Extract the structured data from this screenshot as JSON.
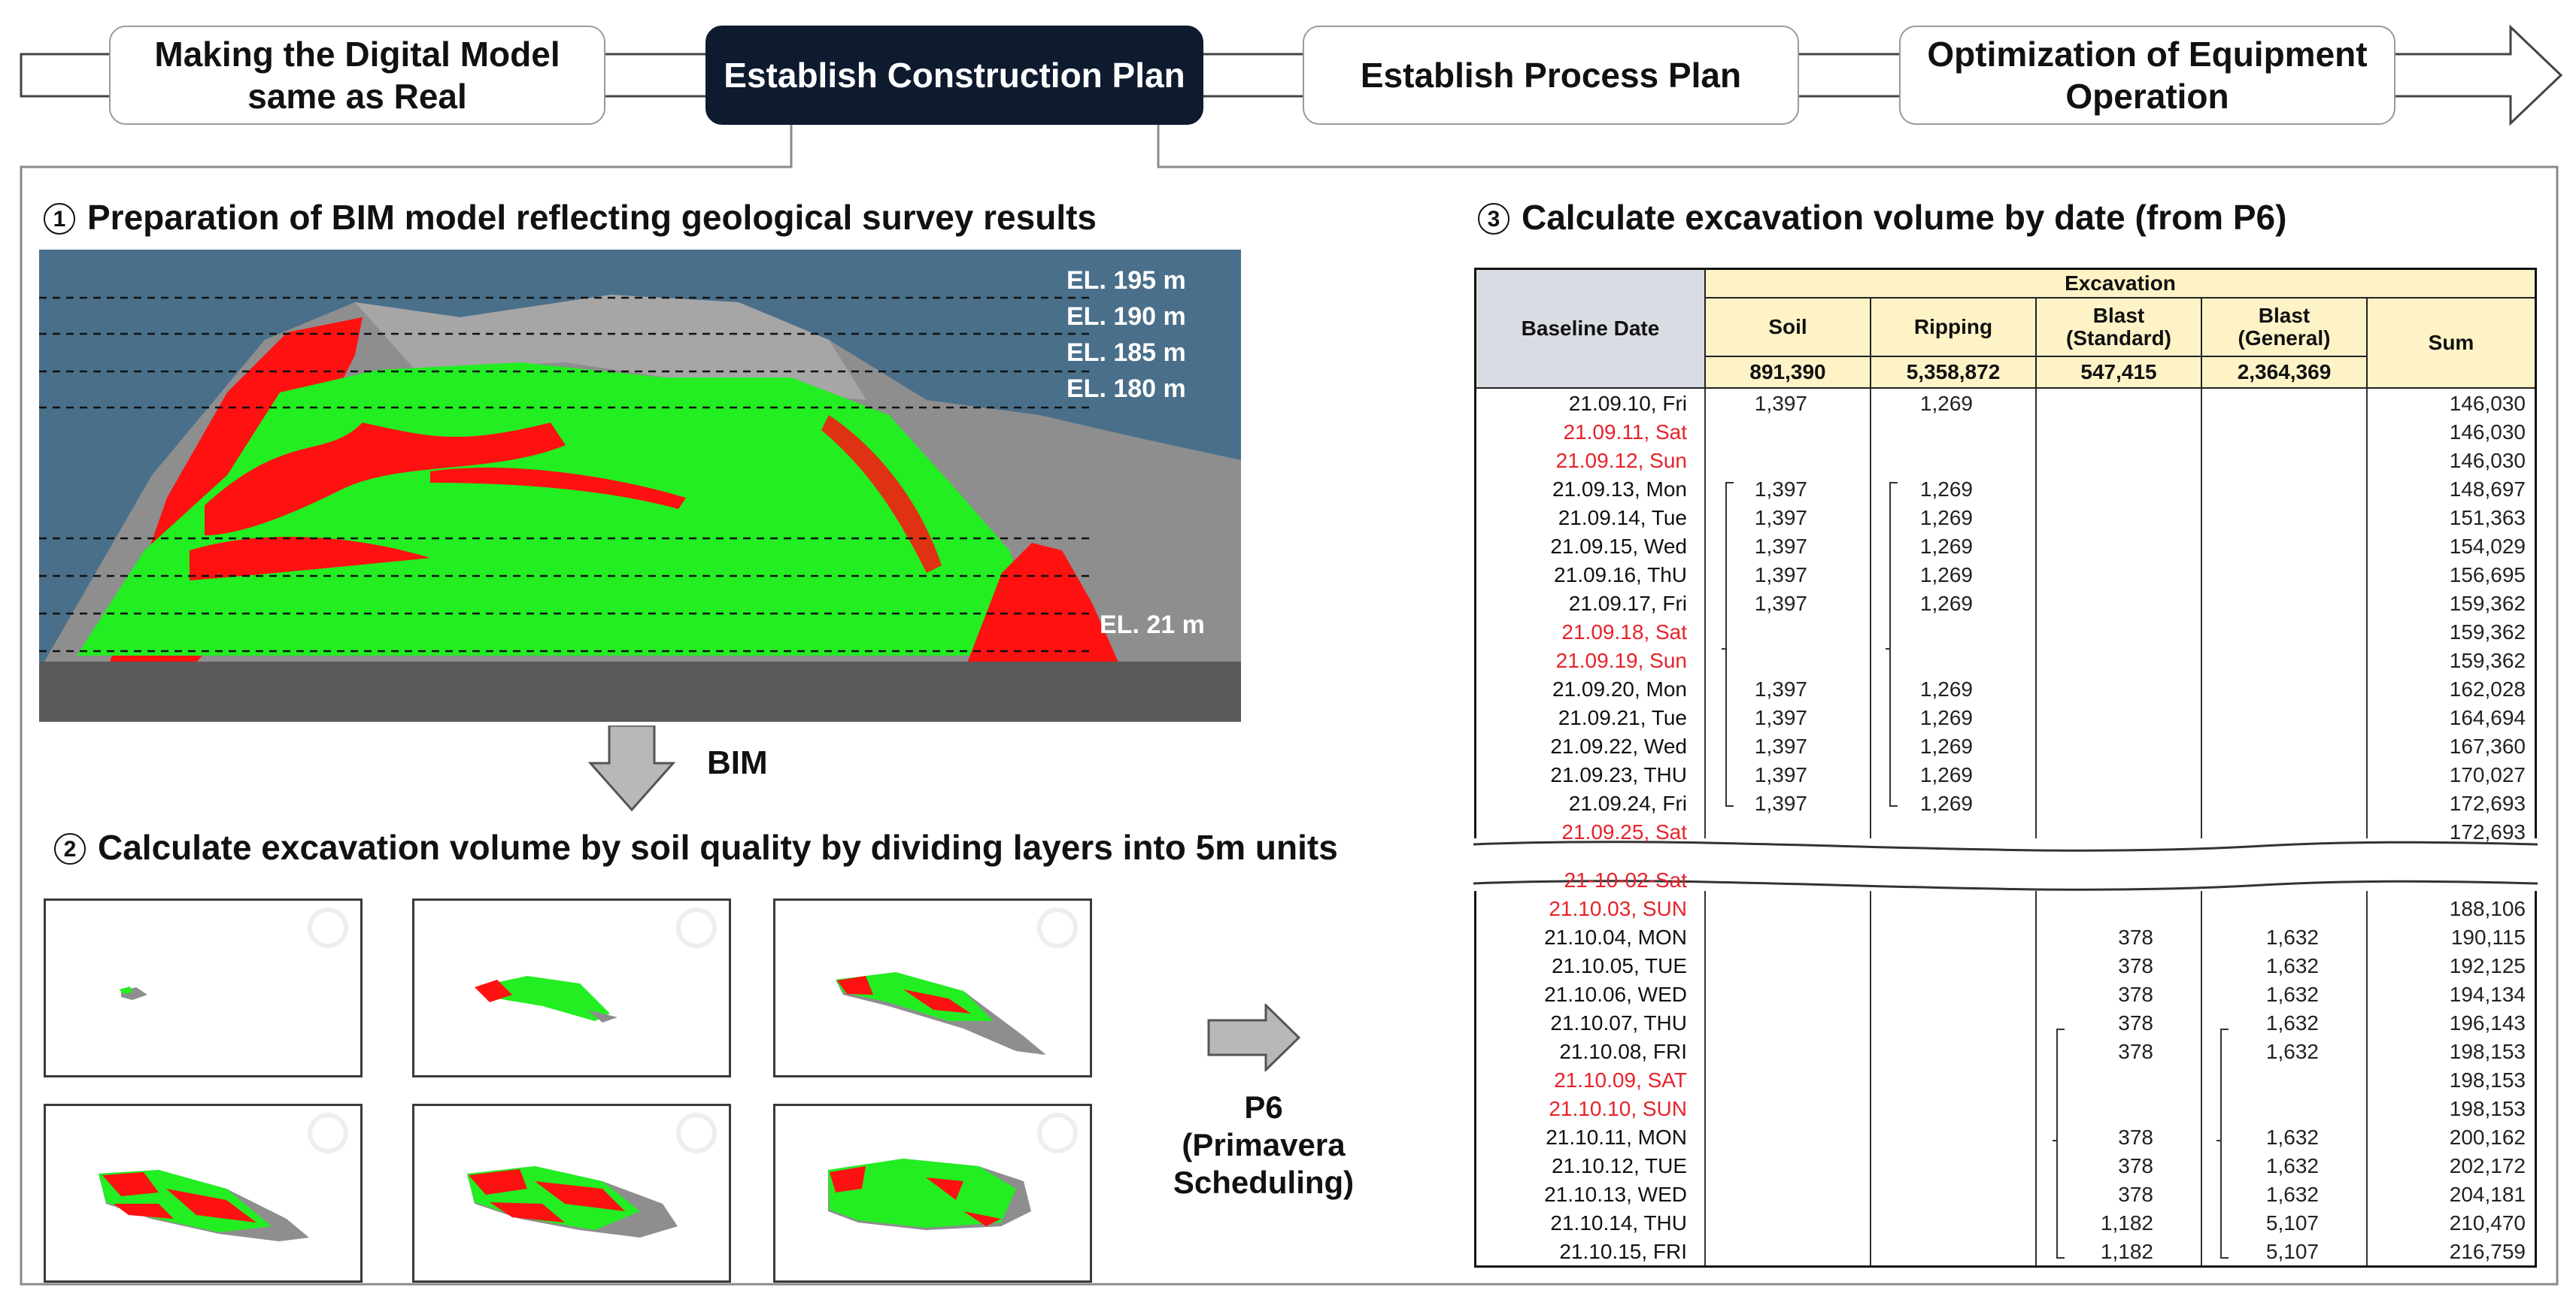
{
  "process_steps": [
    {
      "label": "Making the Digital Model\nsame as Real",
      "active": false
    },
    {
      "label": "Establish Construction Plan",
      "active": true
    },
    {
      "label": "Establish Process Plan",
      "active": false
    },
    {
      "label": "Optimization of Equipment\nOperation",
      "active": false
    }
  ],
  "section1": {
    "num": "1",
    "title": "Preparation of BIM model reflecting geological survey results"
  },
  "section2": {
    "num": "2",
    "title": "Calculate excavation volume by soil quality by dividing layers into 5m units"
  },
  "section3": {
    "num": "3",
    "title": "Calculate excavation volume by date  (from P6)"
  },
  "elevations": [
    "EL. 195 m",
    "EL. 190 m",
    "EL. 185 m",
    "EL. 180 m",
    "EL. 21 m"
  ],
  "arrows": {
    "bim": "BIM",
    "p6": "P6\n(Primavera\nScheduling)"
  },
  "colors": {
    "soil_green": "#22ee22",
    "rock_red": "#ff1111",
    "rock_gray": "#8e8e8e",
    "sky": "#4a6f8a",
    "active_step": "#0e1a2e",
    "header_fill": "#fdf3c6",
    "weekend_text": "#e8222b"
  },
  "table": {
    "header": {
      "baseline_date": "Baseline Date",
      "group": "Excavation",
      "columns": [
        "Soil",
        "Ripping",
        "Blast\n(Standard)",
        "Blast\n(General)",
        "Sum"
      ],
      "totals": [
        "891,390",
        "5,358,872",
        "547,415",
        "2,364,369"
      ]
    },
    "rows_part1": [
      {
        "date": "21.09.10, Fri",
        "weekend": false,
        "soil": "1,397",
        "ripping": "1,269",
        "blast_std": "",
        "blast_gen": "",
        "sum": "146,030"
      },
      {
        "date": "21.09.11, Sat",
        "weekend": true,
        "soil": "",
        "ripping": "",
        "blast_std": "",
        "blast_gen": "",
        "sum": "146,030"
      },
      {
        "date": "21.09.12, Sun",
        "weekend": true,
        "soil": "",
        "ripping": "",
        "blast_std": "",
        "blast_gen": "",
        "sum": "146,030"
      },
      {
        "date": "21.09.13, Mon",
        "weekend": false,
        "soil": "1,397",
        "ripping": "1,269",
        "blast_std": "",
        "blast_gen": "",
        "sum": "148,697"
      },
      {
        "date": "21.09.14, Tue",
        "weekend": false,
        "soil": "1,397",
        "ripping": "1,269",
        "blast_std": "",
        "blast_gen": "",
        "sum": "151,363"
      },
      {
        "date": "21.09.15, Wed",
        "weekend": false,
        "soil": "1,397",
        "ripping": "1,269",
        "blast_std": "",
        "blast_gen": "",
        "sum": "154,029"
      },
      {
        "date": "21.09.16, ThU",
        "weekend": false,
        "soil": "1,397",
        "ripping": "1,269",
        "blast_std": "",
        "blast_gen": "",
        "sum": "156,695"
      },
      {
        "date": "21.09.17, Fri",
        "weekend": false,
        "soil": "1,397",
        "ripping": "1,269",
        "blast_std": "",
        "blast_gen": "",
        "sum": "159,362"
      },
      {
        "date": "21.09.18, Sat",
        "weekend": true,
        "soil": "",
        "ripping": "",
        "blast_std": "",
        "blast_gen": "",
        "sum": "159,362"
      },
      {
        "date": "21.09.19, Sun",
        "weekend": true,
        "soil": "",
        "ripping": "",
        "blast_std": "",
        "blast_gen": "",
        "sum": "159,362"
      },
      {
        "date": "21.09.20, Mon",
        "weekend": false,
        "soil": "1,397",
        "ripping": "1,269",
        "blast_std": "",
        "blast_gen": "",
        "sum": "162,028"
      },
      {
        "date": "21.09.21, Tue",
        "weekend": false,
        "soil": "1,397",
        "ripping": "1,269",
        "blast_std": "",
        "blast_gen": "",
        "sum": "164,694"
      },
      {
        "date": "21.09.22, Wed",
        "weekend": false,
        "soil": "1,397",
        "ripping": "1,269",
        "blast_std": "",
        "blast_gen": "",
        "sum": "167,360"
      },
      {
        "date": "21.09.23, THU",
        "weekend": false,
        "soil": "1,397",
        "ripping": "1,269",
        "blast_std": "",
        "blast_gen": "",
        "sum": "170,027"
      },
      {
        "date": "21.09.24, Fri",
        "weekend": false,
        "soil": "1,397",
        "ripping": "1,269",
        "blast_std": "",
        "blast_gen": "",
        "sum": "172,693"
      },
      {
        "date": "21.09.25, Sat",
        "weekend": true,
        "soil": "",
        "ripping": "",
        "blast_std": "",
        "blast_gen": "",
        "sum": "172,693"
      }
    ],
    "rows_part2": [
      {
        "date": "21-10-02-Sat",
        "weekend": true,
        "soil": "",
        "ripping": "",
        "blast_std": "",
        "blast_gen": "",
        "sum": ""
      },
      {
        "date": "21.10.03, SUN",
        "weekend": true,
        "soil": "",
        "ripping": "",
        "blast_std": "",
        "blast_gen": "",
        "sum": "188,106"
      },
      {
        "date": "21.10.04, MON",
        "weekend": false,
        "soil": "",
        "ripping": "",
        "blast_std": "378",
        "blast_gen": "1,632",
        "sum": "190,115"
      },
      {
        "date": "21.10.05, TUE",
        "weekend": false,
        "soil": "",
        "ripping": "",
        "blast_std": "378",
        "blast_gen": "1,632",
        "sum": "192,125"
      },
      {
        "date": "21.10.06, WED",
        "weekend": false,
        "soil": "",
        "ripping": "",
        "blast_std": "378",
        "blast_gen": "1,632",
        "sum": "194,134"
      },
      {
        "date": "21.10.07, THU",
        "weekend": false,
        "soil": "",
        "ripping": "",
        "blast_std": "378",
        "blast_gen": "1,632",
        "sum": "196,143"
      },
      {
        "date": "21.10.08, FRI",
        "weekend": false,
        "soil": "",
        "ripping": "",
        "blast_std": "378",
        "blast_gen": "1,632",
        "sum": "198,153"
      },
      {
        "date": "21.10.09, SAT",
        "weekend": true,
        "soil": "",
        "ripping": "",
        "blast_std": "",
        "blast_gen": "",
        "sum": "198,153"
      },
      {
        "date": "21.10.10, SUN",
        "weekend": true,
        "soil": "",
        "ripping": "",
        "blast_std": "",
        "blast_gen": "",
        "sum": "198,153"
      },
      {
        "date": "21.10.11, MON",
        "weekend": false,
        "soil": "",
        "ripping": "",
        "blast_std": "378",
        "blast_gen": "1,632",
        "sum": "200,162"
      },
      {
        "date": "21.10.12, TUE",
        "weekend": false,
        "soil": "",
        "ripping": "",
        "blast_std": "378",
        "blast_gen": "1,632",
        "sum": "202,172"
      },
      {
        "date": "21.10.13, WED",
        "weekend": false,
        "soil": "",
        "ripping": "",
        "blast_std": "378",
        "blast_gen": "1,632",
        "sum": "204,181"
      },
      {
        "date": "21.10.14, THU",
        "weekend": false,
        "soil": "",
        "ripping": "",
        "blast_std": "1,182",
        "blast_gen": "5,107",
        "sum": "210,470"
      },
      {
        "date": "21.10.15, FRI",
        "weekend": false,
        "soil": "",
        "ripping": "",
        "blast_std": "1,182",
        "blast_gen": "5,107",
        "sum": "216,759"
      }
    ]
  }
}
